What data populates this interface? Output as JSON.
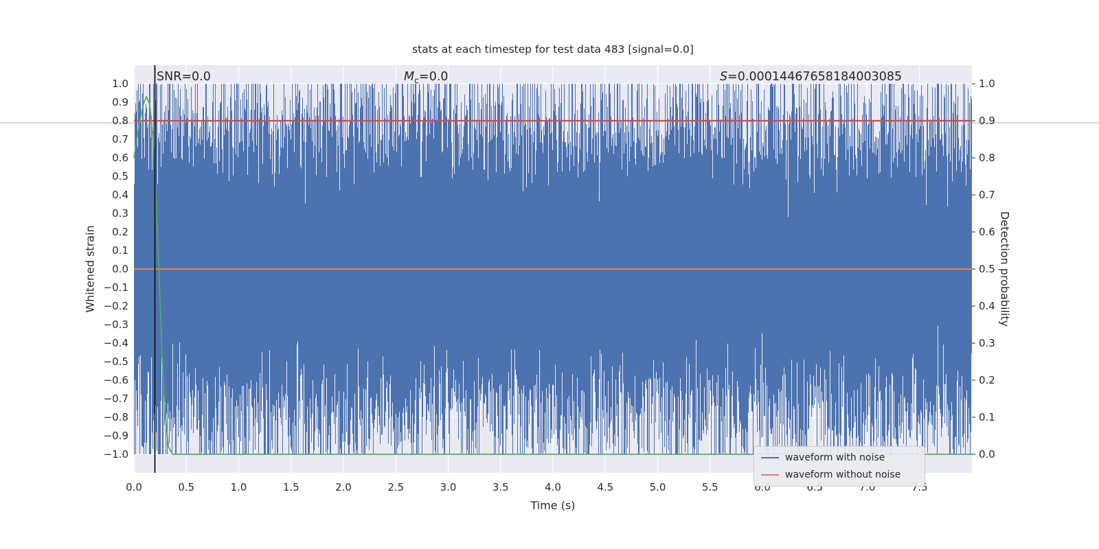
{
  "page": {
    "background": "#ffffff",
    "rule_color": "#ccd7ea"
  },
  "figure": {
    "title": "stats at each timestep for test data 483 [signal=0.0]",
    "annotations": {
      "snr": "SNR=0.0",
      "mc_var": "M",
      "mc_sub": "c",
      "mc_rest": "=0.0",
      "s_var": "S",
      "s_rest": "=0.00014467658184003085"
    },
    "xlabel": "Time (s)",
    "ylabel_left": "Whitened strain",
    "ylabel_right": "Detection probability"
  },
  "chart_data": {
    "type": "line",
    "title": "stats at each timestep for test data 483 [signal=0.0]",
    "xlabel": "Time (s)",
    "ylabel_left": "Whitened strain",
    "ylabel_right": "Detection probability",
    "xlim": [
      0,
      8
    ],
    "ylim_left": [
      -1.1,
      1.1
    ],
    "ylim_right": [
      -0.05,
      1.05
    ],
    "x_ticks": [
      "0.0",
      "0.5",
      "1.0",
      "1.5",
      "2.0",
      "2.5",
      "3.0",
      "3.5",
      "4.0",
      "4.5",
      "5.0",
      "5.5",
      "6.0",
      "6.5",
      "7.0",
      "7.5"
    ],
    "y_ticks_left": [
      "1.0",
      "0.9",
      "0.8",
      "0.7",
      "0.6",
      "0.5",
      "0.4",
      "0.3",
      "0.2",
      "0.1",
      "0.0",
      "−0.1",
      "−0.2",
      "−0.3",
      "−0.4",
      "−0.5",
      "−0.6",
      "−0.7",
      "−0.8",
      "−0.9",
      "−1.0"
    ],
    "y_ticks_right": [
      "1.0",
      "0.9",
      "0.8",
      "0.7",
      "0.6",
      "0.5",
      "0.4",
      "0.3",
      "0.2",
      "0.1",
      "0.0"
    ],
    "grid": {
      "show": true,
      "color": "#ffffff",
      "axes_bg": "#eaeaf2"
    },
    "stats": {
      "snr": 0.0,
      "chirp_mass": 0.0,
      "s_statistic": 0.00014467658184003085,
      "test_index": 483,
      "signal": 0.0
    },
    "series": [
      {
        "name": "waveform with noise",
        "type": "noise_fill",
        "axis": "left",
        "color": "#4c72b0",
        "description": "dense whitened Gaussian noise spanning full 0-8 s window, amplitude clipped to ±1.0, solid core within roughly ±0.5",
        "seed": 4831,
        "samples_per_column": 4,
        "base": 0.3,
        "scale": 0.36,
        "clip": 1.0,
        "deep_dip_prob": 0.004
      },
      {
        "name": "waveform without noise",
        "type": "hline",
        "axis": "left",
        "color": "#dd8452",
        "y": 0.0
      },
      {
        "name": "detection probability",
        "type": "line",
        "axis": "right",
        "color": "#55a868",
        "points": [
          [
            0.0,
            0.8
          ],
          [
            0.05,
            0.89
          ],
          [
            0.09,
            0.945
          ],
          [
            0.12,
            0.965
          ],
          [
            0.15,
            0.945
          ],
          [
            0.18,
            0.86
          ],
          [
            0.21,
            0.7
          ],
          [
            0.24,
            0.48
          ],
          [
            0.27,
            0.26
          ],
          [
            0.3,
            0.1
          ],
          [
            0.33,
            0.02
          ],
          [
            0.37,
            0.0
          ],
          [
            8.0,
            0.0
          ]
        ]
      },
      {
        "name": "detection threshold",
        "type": "hline",
        "axis": "right",
        "color": "#c44e52",
        "y": 0.9
      },
      {
        "name": "event time marker",
        "type": "vline",
        "color": "#111111",
        "x": 0.2
      }
    ],
    "legend": {
      "position": "lower right",
      "entries": [
        {
          "label": "waveform with noise",
          "color": "#4c72b0"
        },
        {
          "label": "waveform without noise",
          "color": "#dd8452"
        }
      ]
    }
  }
}
